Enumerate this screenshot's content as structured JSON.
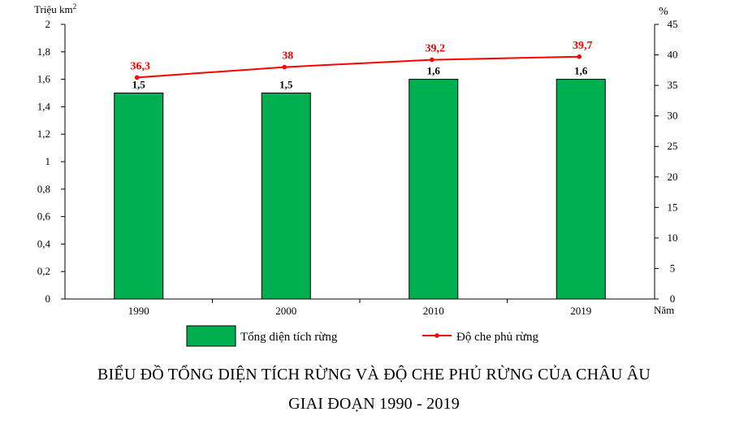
{
  "chart_data": {
    "type": "bar+line",
    "categories": [
      "1990",
      "2000",
      "2010",
      "2019"
    ],
    "x_axis_unit": "Năm",
    "y_left": {
      "unit": "Triệu km",
      "unit_sup": "2",
      "ylim": [
        0,
        2
      ],
      "ticks": [
        "0",
        "0,2",
        "0,4",
        "0,6",
        "0,8",
        "1",
        "1,2",
        "1,4",
        "1,6",
        "1,8",
        "2"
      ]
    },
    "y_right": {
      "unit": "%",
      "ylim": [
        0,
        45
      ],
      "ticks": [
        "0",
        "5",
        "10",
        "15",
        "20",
        "25",
        "30",
        "35",
        "40",
        "45"
      ]
    },
    "series": [
      {
        "name": "Tổng diện tích rừng",
        "type": "bar",
        "axis": "left",
        "color": "#00b050",
        "values": [
          1.5,
          1.5,
          1.6,
          1.6
        ],
        "labels": [
          "1,5",
          "1,5",
          "1,6",
          "1,6"
        ]
      },
      {
        "name": "Độ che phủ rừng",
        "type": "line",
        "axis": "right",
        "color": "#ff0000",
        "values": [
          36.3,
          38,
          39.2,
          39.7
        ],
        "labels": [
          "36,3",
          "38",
          "39,2",
          "39,7"
        ]
      }
    ],
    "legend_position": "bottom",
    "title_line1": "BIỂU ĐỒ TỔNG DIỆN TÍCH RỪNG VÀ ĐỘ CHE PHỦ RỪNG CỦA CHÂU ÂU",
    "title_line2": "GIAI ĐOẠN 1990 - 2019"
  }
}
